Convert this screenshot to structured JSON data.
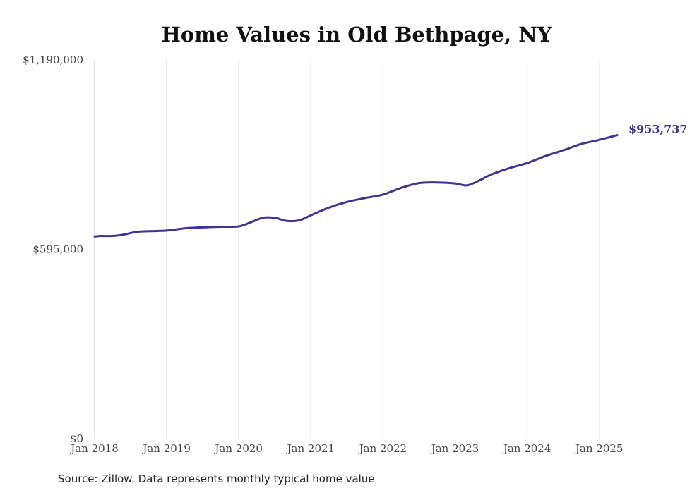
{
  "chart_data": {
    "type": "line",
    "title": "Home Values in Old Bethpage, NY",
    "xlabel": "",
    "ylabel": "",
    "source": "Source: Zillow. Data represents monthly typical home value",
    "ylim": [
      0,
      1190000
    ],
    "y_ticks": [
      {
        "value": 0,
        "label": "$0"
      },
      {
        "value": 595000,
        "label": "$595,000"
      },
      {
        "value": 1190000,
        "label": "$1,190,000"
      }
    ],
    "x_range": [
      "2018-01",
      "2025-12"
    ],
    "x_ticks": [
      {
        "date": "2018-01",
        "label": "Jan 2018"
      },
      {
        "date": "2019-01",
        "label": "Jan 2019"
      },
      {
        "date": "2020-01",
        "label": "Jan 2020"
      },
      {
        "date": "2021-01",
        "label": "Jan 2021"
      },
      {
        "date": "2022-01",
        "label": "Jan 2022"
      },
      {
        "date": "2023-01",
        "label": "Jan 2023"
      },
      {
        "date": "2024-01",
        "label": "Jan 2024"
      },
      {
        "date": "2025-01",
        "label": "Jan 2025"
      }
    ],
    "vertical_grid": true,
    "line_color": "#3d3591",
    "end_label": "$953,737",
    "series": [
      {
        "name": "",
        "points": [
          [
            "2018-01",
            635000
          ],
          [
            "2018-02",
            637000
          ],
          [
            "2018-04",
            637000
          ],
          [
            "2018-06",
            642000
          ],
          [
            "2018-08",
            650000
          ],
          [
            "2018-10",
            652000
          ],
          [
            "2019-01",
            654000
          ],
          [
            "2019-04",
            661000
          ],
          [
            "2019-07",
            664000
          ],
          [
            "2019-10",
            666000
          ],
          [
            "2020-01",
            667000
          ],
          [
            "2020-03",
            680000
          ],
          [
            "2020-05",
            694000
          ],
          [
            "2020-07",
            694000
          ],
          [
            "2020-09",
            684000
          ],
          [
            "2020-11",
            686000
          ],
          [
            "2021-01",
            702000
          ],
          [
            "2021-04",
            726000
          ],
          [
            "2021-07",
            744000
          ],
          [
            "2021-10",
            756000
          ],
          [
            "2022-01",
            767000
          ],
          [
            "2022-04",
            788000
          ],
          [
            "2022-07",
            803000
          ],
          [
            "2022-10",
            805000
          ],
          [
            "2023-01",
            802000
          ],
          [
            "2023-03",
            796000
          ],
          [
            "2023-05",
            811000
          ],
          [
            "2023-07",
            830000
          ],
          [
            "2023-10",
            850000
          ],
          [
            "2024-01",
            866000
          ],
          [
            "2024-04",
            888000
          ],
          [
            "2024-07",
            906000
          ],
          [
            "2024-10",
            926000
          ],
          [
            "2025-01",
            939000
          ],
          [
            "2025-04",
            953737
          ]
        ]
      }
    ]
  }
}
